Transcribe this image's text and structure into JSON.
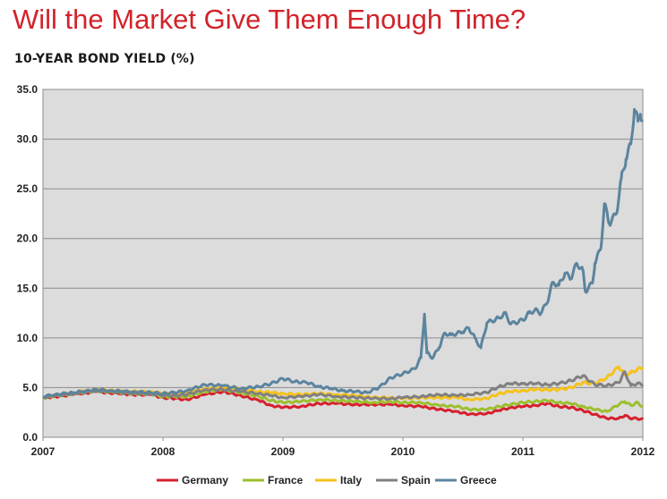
{
  "chart_data": {
    "type": "line",
    "title": "Will the Market Give Them Enough Time?",
    "subtitle": "10-YEAR BOND YIELD (%)",
    "xlabel": "",
    "ylabel": "",
    "ylim": [
      0,
      35
    ],
    "xlim": [
      2007,
      2012
    ],
    "y_ticks": [
      "0.0",
      "5.0",
      "10.0",
      "15.0",
      "20.0",
      "25.0",
      "30.0",
      "35.0"
    ],
    "x_ticks": [
      "2007",
      "2008",
      "2009",
      "2010",
      "2011",
      "2012"
    ],
    "grid": "horizontal",
    "legend_position": "bottom",
    "series": [
      {
        "name": "Germany",
        "color": "#d6202e",
        "points": [
          [
            2007.0,
            4.0
          ],
          [
            2007.1,
            4.1
          ],
          [
            2007.25,
            4.3
          ],
          [
            2007.45,
            4.6
          ],
          [
            2007.55,
            4.5
          ],
          [
            2007.75,
            4.3
          ],
          [
            2007.9,
            4.3
          ],
          [
            2008.0,
            4.0
          ],
          [
            2008.1,
            3.9
          ],
          [
            2008.2,
            3.8
          ],
          [
            2008.35,
            4.3
          ],
          [
            2008.5,
            4.6
          ],
          [
            2008.65,
            4.2
          ],
          [
            2008.8,
            3.7
          ],
          [
            2008.9,
            3.2
          ],
          [
            2009.0,
            3.0
          ],
          [
            2009.15,
            3.1
          ],
          [
            2009.3,
            3.4
          ],
          [
            2009.45,
            3.4
          ],
          [
            2009.6,
            3.3
          ],
          [
            2009.75,
            3.3
          ],
          [
            2009.9,
            3.3
          ],
          [
            2010.0,
            3.2
          ],
          [
            2010.15,
            3.1
          ],
          [
            2010.3,
            2.8
          ],
          [
            2010.45,
            2.6
          ],
          [
            2010.55,
            2.3
          ],
          [
            2010.7,
            2.4
          ],
          [
            2010.8,
            2.7
          ],
          [
            2010.9,
            3.0
          ],
          [
            2011.0,
            3.1
          ],
          [
            2011.1,
            3.2
          ],
          [
            2011.2,
            3.4
          ],
          [
            2011.3,
            3.1
          ],
          [
            2011.4,
            3.0
          ],
          [
            2011.5,
            2.7
          ],
          [
            2011.6,
            2.3
          ],
          [
            2011.7,
            1.9
          ],
          [
            2011.8,
            1.9
          ],
          [
            2011.85,
            2.2
          ],
          [
            2011.9,
            1.9
          ],
          [
            2011.95,
            1.9
          ],
          [
            2012.0,
            1.8
          ]
        ]
      },
      {
        "name": "France",
        "color": "#9cbf2e",
        "points": [
          [
            2007.0,
            4.0
          ],
          [
            2007.1,
            4.2
          ],
          [
            2007.25,
            4.4
          ],
          [
            2007.45,
            4.7
          ],
          [
            2007.55,
            4.6
          ],
          [
            2007.75,
            4.4
          ],
          [
            2007.9,
            4.4
          ],
          [
            2008.0,
            4.1
          ],
          [
            2008.1,
            4.1
          ],
          [
            2008.2,
            4.1
          ],
          [
            2008.35,
            4.6
          ],
          [
            2008.5,
            4.8
          ],
          [
            2008.65,
            4.5
          ],
          [
            2008.8,
            4.1
          ],
          [
            2008.9,
            3.7
          ],
          [
            2009.0,
            3.5
          ],
          [
            2009.15,
            3.6
          ],
          [
            2009.3,
            3.8
          ],
          [
            2009.45,
            3.7
          ],
          [
            2009.6,
            3.6
          ],
          [
            2009.75,
            3.5
          ],
          [
            2009.9,
            3.6
          ],
          [
            2010.0,
            3.5
          ],
          [
            2010.15,
            3.5
          ],
          [
            2010.3,
            3.2
          ],
          [
            2010.45,
            3.1
          ],
          [
            2010.55,
            2.8
          ],
          [
            2010.7,
            2.8
          ],
          [
            2010.8,
            3.1
          ],
          [
            2010.9,
            3.3
          ],
          [
            2011.0,
            3.5
          ],
          [
            2011.1,
            3.6
          ],
          [
            2011.2,
            3.7
          ],
          [
            2011.3,
            3.5
          ],
          [
            2011.4,
            3.4
          ],
          [
            2011.5,
            3.1
          ],
          [
            2011.6,
            2.8
          ],
          [
            2011.7,
            2.6
          ],
          [
            2011.8,
            3.3
          ],
          [
            2011.85,
            3.6
          ],
          [
            2011.9,
            3.2
          ],
          [
            2011.95,
            3.5
          ],
          [
            2012.0,
            3.1
          ]
        ]
      },
      {
        "name": "Italy",
        "color": "#f6c21a",
        "points": [
          [
            2007.0,
            4.0
          ],
          [
            2007.1,
            4.2
          ],
          [
            2007.25,
            4.5
          ],
          [
            2007.45,
            4.8
          ],
          [
            2007.55,
            4.7
          ],
          [
            2007.75,
            4.6
          ],
          [
            2007.9,
            4.6
          ],
          [
            2008.0,
            4.4
          ],
          [
            2008.1,
            4.4
          ],
          [
            2008.2,
            4.5
          ],
          [
            2008.35,
            4.9
          ],
          [
            2008.5,
            5.0
          ],
          [
            2008.65,
            4.9
          ],
          [
            2008.8,
            4.6
          ],
          [
            2008.9,
            4.5
          ],
          [
            2009.0,
            4.4
          ],
          [
            2009.15,
            4.3
          ],
          [
            2009.3,
            4.4
          ],
          [
            2009.45,
            4.3
          ],
          [
            2009.6,
            4.2
          ],
          [
            2009.75,
            4.0
          ],
          [
            2009.9,
            4.0
          ],
          [
            2010.0,
            3.9
          ],
          [
            2010.15,
            4.0
          ],
          [
            2010.3,
            4.0
          ],
          [
            2010.45,
            4.0
          ],
          [
            2010.55,
            3.8
          ],
          [
            2010.7,
            3.9
          ],
          [
            2010.8,
            4.4
          ],
          [
            2010.9,
            4.6
          ],
          [
            2011.0,
            4.7
          ],
          [
            2011.1,
            4.8
          ],
          [
            2011.2,
            4.8
          ],
          [
            2011.3,
            4.8
          ],
          [
            2011.4,
            5.0
          ],
          [
            2011.5,
            5.5
          ],
          [
            2011.6,
            5.4
          ],
          [
            2011.7,
            6.0
          ],
          [
            2011.8,
            7.1
          ],
          [
            2011.85,
            6.3
          ],
          [
            2011.9,
            6.5
          ],
          [
            2011.95,
            6.8
          ],
          [
            2012.0,
            7.0
          ]
        ]
      },
      {
        "name": "Spain",
        "color": "#808080",
        "points": [
          [
            2007.0,
            4.0
          ],
          [
            2007.1,
            4.2
          ],
          [
            2007.25,
            4.4
          ],
          [
            2007.45,
            4.7
          ],
          [
            2007.55,
            4.6
          ],
          [
            2007.75,
            4.4
          ],
          [
            2007.9,
            4.4
          ],
          [
            2008.0,
            4.2
          ],
          [
            2008.1,
            4.2
          ],
          [
            2008.2,
            4.3
          ],
          [
            2008.35,
            4.8
          ],
          [
            2008.5,
            4.8
          ],
          [
            2008.65,
            4.6
          ],
          [
            2008.8,
            4.4
          ],
          [
            2008.9,
            4.2
          ],
          [
            2009.0,
            4.0
          ],
          [
            2009.15,
            4.1
          ],
          [
            2009.3,
            4.3
          ],
          [
            2009.45,
            4.1
          ],
          [
            2009.6,
            4.0
          ],
          [
            2009.75,
            3.9
          ],
          [
            2009.9,
            3.9
          ],
          [
            2010.0,
            4.0
          ],
          [
            2010.15,
            4.1
          ],
          [
            2010.3,
            4.3
          ],
          [
            2010.45,
            4.2
          ],
          [
            2010.55,
            4.3
          ],
          [
            2010.7,
            4.5
          ],
          [
            2010.8,
            5.1
          ],
          [
            2010.9,
            5.4
          ],
          [
            2011.0,
            5.4
          ],
          [
            2011.1,
            5.4
          ],
          [
            2011.2,
            5.3
          ],
          [
            2011.3,
            5.4
          ],
          [
            2011.4,
            5.7
          ],
          [
            2011.5,
            6.2
          ],
          [
            2011.6,
            5.3
          ],
          [
            2011.7,
            5.2
          ],
          [
            2011.8,
            5.5
          ],
          [
            2011.85,
            6.6
          ],
          [
            2011.9,
            5.2
          ],
          [
            2011.95,
            5.4
          ],
          [
            2012.0,
            5.3
          ]
        ]
      },
      {
        "name": "Greece",
        "color": "#5b849e",
        "points": [
          [
            2007.0,
            4.1
          ],
          [
            2007.1,
            4.3
          ],
          [
            2007.25,
            4.5
          ],
          [
            2007.45,
            4.8
          ],
          [
            2007.55,
            4.7
          ],
          [
            2007.75,
            4.6
          ],
          [
            2007.9,
            4.5
          ],
          [
            2008.0,
            4.4
          ],
          [
            2008.1,
            4.5
          ],
          [
            2008.2,
            4.7
          ],
          [
            2008.35,
            5.3
          ],
          [
            2008.5,
            5.2
          ],
          [
            2008.65,
            4.9
          ],
          [
            2008.8,
            5.1
          ],
          [
            2008.9,
            5.4
          ],
          [
            2009.0,
            5.9
          ],
          [
            2009.1,
            5.6
          ],
          [
            2009.2,
            5.5
          ],
          [
            2009.3,
            5.1
          ],
          [
            2009.4,
            4.9
          ],
          [
            2009.5,
            4.7
          ],
          [
            2009.6,
            4.6
          ],
          [
            2009.7,
            4.5
          ],
          [
            2009.8,
            5.0
          ],
          [
            2009.9,
            6.0
          ],
          [
            2010.0,
            6.4
          ],
          [
            2010.1,
            6.9
          ],
          [
            2010.15,
            8.0
          ],
          [
            2010.18,
            12.4
          ],
          [
            2010.2,
            8.5
          ],
          [
            2010.25,
            8.0
          ],
          [
            2010.3,
            9.0
          ],
          [
            2010.35,
            10.5
          ],
          [
            2010.4,
            10.3
          ],
          [
            2010.5,
            10.6
          ],
          [
            2010.55,
            11.0
          ],
          [
            2010.6,
            10.0
          ],
          [
            2010.65,
            9.0
          ],
          [
            2010.7,
            11.5
          ],
          [
            2010.8,
            12.0
          ],
          [
            2010.85,
            12.5
          ],
          [
            2010.9,
            11.4
          ],
          [
            2011.0,
            11.8
          ],
          [
            2011.05,
            12.5
          ],
          [
            2011.1,
            12.8
          ],
          [
            2011.15,
            12.5
          ],
          [
            2011.2,
            13.5
          ],
          [
            2011.25,
            15.6
          ],
          [
            2011.3,
            15.3
          ],
          [
            2011.35,
            16.5
          ],
          [
            2011.4,
            16.0
          ],
          [
            2011.45,
            17.5
          ],
          [
            2011.5,
            16.8
          ],
          [
            2011.52,
            14.7
          ],
          [
            2011.58,
            15.5
          ],
          [
            2011.6,
            17.5
          ],
          [
            2011.65,
            19.0
          ],
          [
            2011.68,
            23.5
          ],
          [
            2011.72,
            21.5
          ],
          [
            2011.78,
            22.5
          ],
          [
            2011.82,
            26.0
          ],
          [
            2011.86,
            28.0
          ],
          [
            2011.9,
            29.5
          ],
          [
            2011.93,
            33.0
          ],
          [
            2011.96,
            31.8
          ],
          [
            2011.98,
            32.5
          ],
          [
            2012.0,
            31.9
          ]
        ]
      }
    ]
  }
}
